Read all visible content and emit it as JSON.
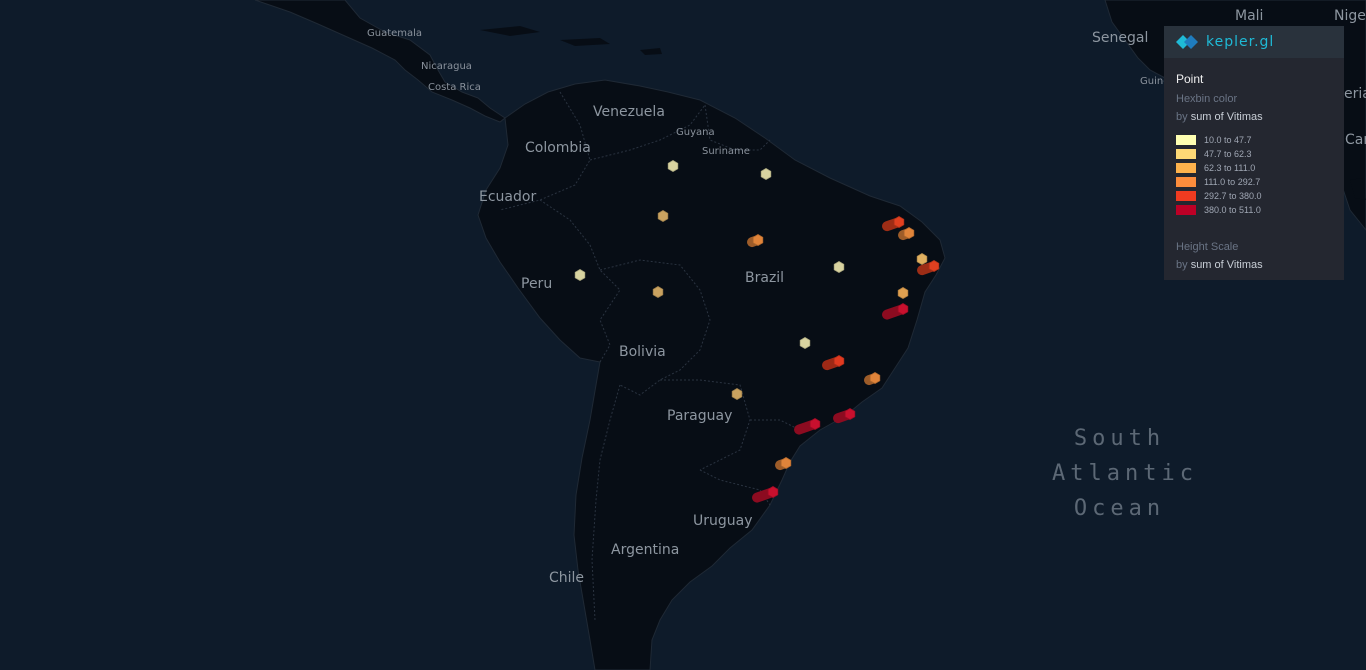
{
  "map": {
    "country_labels": [
      {
        "id": "guatemala",
        "text": "Guatemala",
        "size": "small"
      },
      {
        "id": "nicaragua",
        "text": "Nicaragua",
        "size": "small"
      },
      {
        "id": "costa-rica",
        "text": "Costa Rica",
        "size": "small"
      },
      {
        "id": "venezuela",
        "text": "Venezuela",
        "size": "big"
      },
      {
        "id": "guyana",
        "text": "Guyana",
        "size": "small"
      },
      {
        "id": "suriname",
        "text": "Suriname",
        "size": "small"
      },
      {
        "id": "colombia",
        "text": "Colombia",
        "size": "big"
      },
      {
        "id": "ecuador",
        "text": "Ecuador",
        "size": "big"
      },
      {
        "id": "peru",
        "text": "Peru",
        "size": "big"
      },
      {
        "id": "brazil",
        "text": "Brazil",
        "size": "big"
      },
      {
        "id": "bolivia",
        "text": "Bolivia",
        "size": "big"
      },
      {
        "id": "paraguay",
        "text": "Paraguay",
        "size": "big"
      },
      {
        "id": "uruguay",
        "text": "Uruguay",
        "size": "big"
      },
      {
        "id": "argentina",
        "text": "Argentina",
        "size": "big"
      },
      {
        "id": "chile",
        "text": "Chile",
        "size": "big"
      },
      {
        "id": "senegal",
        "text": "Senegal",
        "size": "big"
      },
      {
        "id": "mali",
        "text": "Mali",
        "size": "big"
      },
      {
        "id": "niger",
        "text": "Nige",
        "size": "big"
      },
      {
        "id": "guinea",
        "text": "Guine",
        "size": "small"
      },
      {
        "id": "liberia",
        "text": "eria",
        "size": "big"
      },
      {
        "id": "cameroon",
        "text": "Car",
        "size": "big"
      }
    ],
    "ocean_label": [
      "South",
      "Atlantic",
      "Ocean"
    ],
    "colors": {
      "land": "#070d15",
      "water": "#0e1b2a",
      "border": "#2a3340"
    }
  },
  "legend": {
    "brand": "kepler.gl",
    "layer_name": "Point",
    "color_title": "Hexbin color",
    "by_word": "by",
    "color_field": "sum of Vitimas",
    "items": [
      {
        "range": "10.0 to 47.7",
        "color": "#ffffb2"
      },
      {
        "range": "47.7 to 62.3",
        "color": "#fed976"
      },
      {
        "range": "62.3 to 111.0",
        "color": "#feb24c"
      },
      {
        "range": "111.0 to 292.7",
        "color": "#fd8d3c"
      },
      {
        "range": "292.7 to 380.0",
        "color": "#f03b20"
      },
      {
        "range": "380.0 to 511.0",
        "color": "#bd0026"
      }
    ],
    "height_title": "Height Scale",
    "height_field": "sum of Vitimas"
  },
  "hexbins": [
    {
      "id": "hex-01",
      "color": "#d8d3a0",
      "level": 0
    },
    {
      "id": "hex-02",
      "color": "#d8d3a0",
      "level": 0
    },
    {
      "id": "hex-03",
      "color": "#c9a260",
      "level": 0
    },
    {
      "id": "hex-04",
      "color": "#e0843a",
      "level": 1
    },
    {
      "id": "hex-05",
      "color": "#d8d3a0",
      "level": 0
    },
    {
      "id": "hex-06",
      "color": "#c9a260",
      "level": 0
    },
    {
      "id": "hex-07",
      "color": "#d8d3a0",
      "level": 0
    },
    {
      "id": "hex-08",
      "color": "#e04020",
      "level": 2
    },
    {
      "id": "hex-09",
      "color": "#e0843a",
      "level": 1
    },
    {
      "id": "hex-10",
      "color": "#e0b060",
      "level": 0
    },
    {
      "id": "hex-11",
      "color": "#e04020",
      "level": 2
    },
    {
      "id": "hex-12",
      "color": "#e0a050",
      "level": 0
    },
    {
      "id": "hex-13",
      "color": "#c8102e",
      "level": 3
    },
    {
      "id": "hex-14",
      "color": "#d8d3a0",
      "level": 0
    },
    {
      "id": "hex-15",
      "color": "#e03a20",
      "level": 2
    },
    {
      "id": "hex-16",
      "color": "#e0843a",
      "level": 1
    },
    {
      "id": "hex-17",
      "color": "#c9a260",
      "level": 0
    },
    {
      "id": "hex-18",
      "color": "#c8102e",
      "level": 3
    },
    {
      "id": "hex-19",
      "color": "#c8102e",
      "level": 2
    },
    {
      "id": "hex-20",
      "color": "#e0843a",
      "level": 1
    },
    {
      "id": "hex-21",
      "color": "#c8102e",
      "level": 3
    }
  ]
}
